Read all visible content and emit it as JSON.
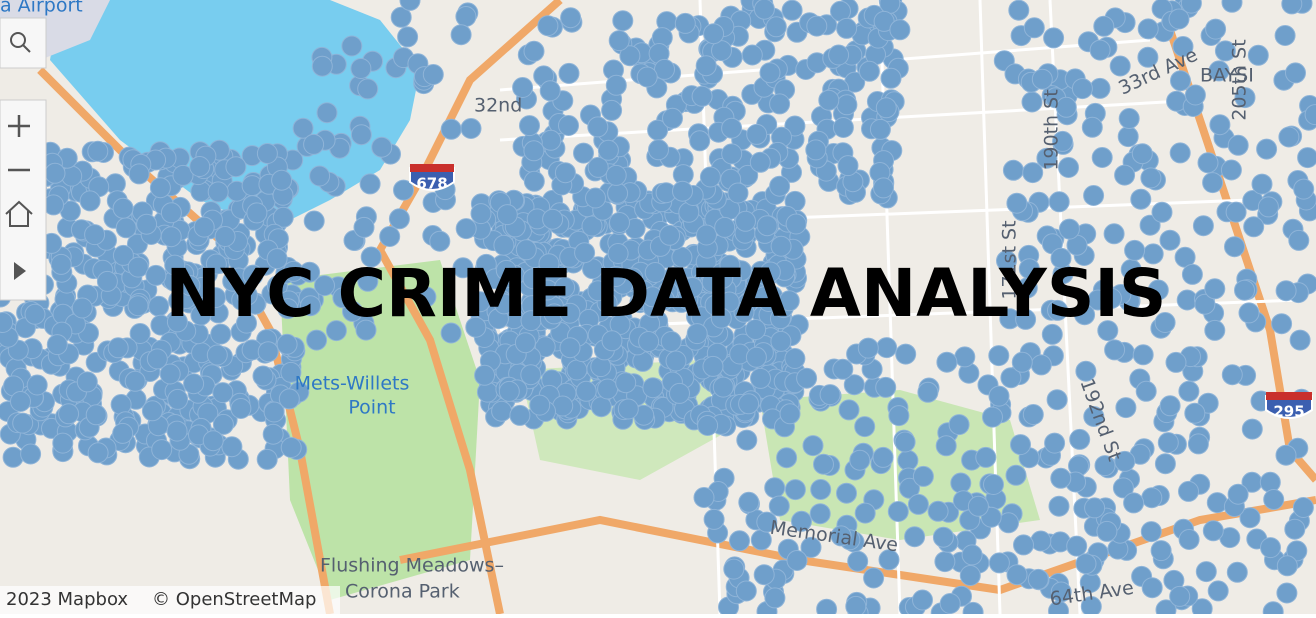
{
  "title": "NYC CRIME DATA ANALYSIS",
  "attribution": [
    "2023 Mapbox",
    "© OpenStreetMap"
  ],
  "map_labels": [
    "a Airport",
    "32nd",
    "Mets-Willets",
    "Point",
    "Flushing Meadows–",
    "Corona Park",
    "BAYSI",
    "205th St",
    "190th St",
    "171st St",
    "192nd St",
    "Memorial Ave",
    "64th Ave",
    "33rd Ave"
  ],
  "highway_shields": [
    "678",
    "295"
  ]
}
